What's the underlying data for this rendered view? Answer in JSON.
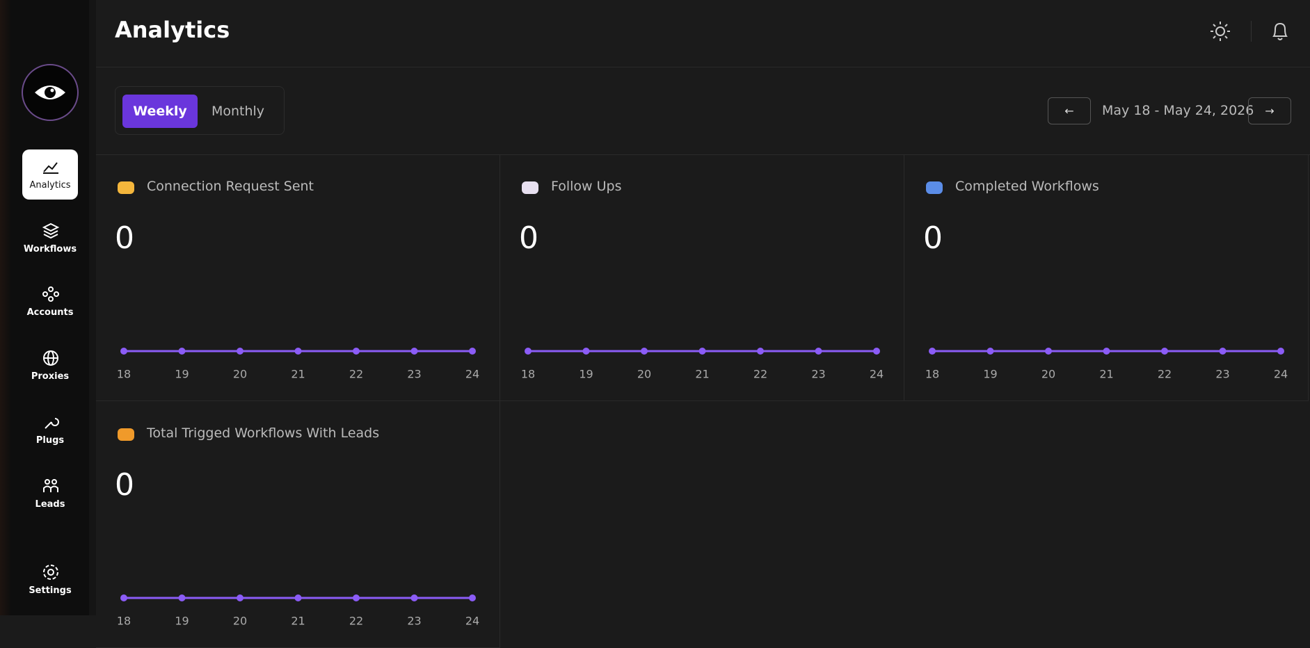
{
  "header": {
    "title": "Analytics"
  },
  "sidebar": {
    "nav": [
      "Analytics",
      "Workflows",
      "Accounts",
      "Proxies",
      "Plugs",
      "Leads"
    ],
    "settings": "Settings"
  },
  "filters": {
    "tabs": [
      "Weekly",
      "Monthly"
    ],
    "date_range": "May 18 - May 24, 2026"
  },
  "cards": [
    {
      "title": "Connection Request Sent",
      "value": 0,
      "chart": {
        "type": "line",
        "color": "#8b5cf6",
        "categories": [
          18,
          19,
          20,
          21,
          22,
          23,
          24
        ],
        "values": [
          0,
          0,
          0,
          0,
          0,
          0,
          0
        ]
      }
    },
    {
      "title": "Follow Ups",
      "value": 0,
      "chart": {
        "type": "line",
        "color": "#8b5cf6",
        "categories": [
          18,
          19,
          20,
          21,
          22,
          23,
          24
        ],
        "values": [
          0,
          0,
          0,
          0,
          0,
          0,
          0
        ]
      }
    },
    {
      "title": "Completed Workflows",
      "value": 0,
      "chart": {
        "type": "line",
        "color": "#8b5cf6",
        "categories": [
          18,
          19,
          20,
          21,
          22,
          23,
          24
        ],
        "values": [
          0,
          0,
          0,
          0,
          0,
          0,
          0
        ]
      }
    },
    {
      "title": "Total Trigged Workflows With Leads",
      "value": 0,
      "chart": {
        "type": "line",
        "color": "#8b5cf6",
        "categories": [
          18,
          19,
          20,
          21,
          22,
          23,
          24
        ],
        "values": [
          0,
          0,
          0,
          0,
          0,
          0,
          0
        ]
      }
    }
  ]
}
